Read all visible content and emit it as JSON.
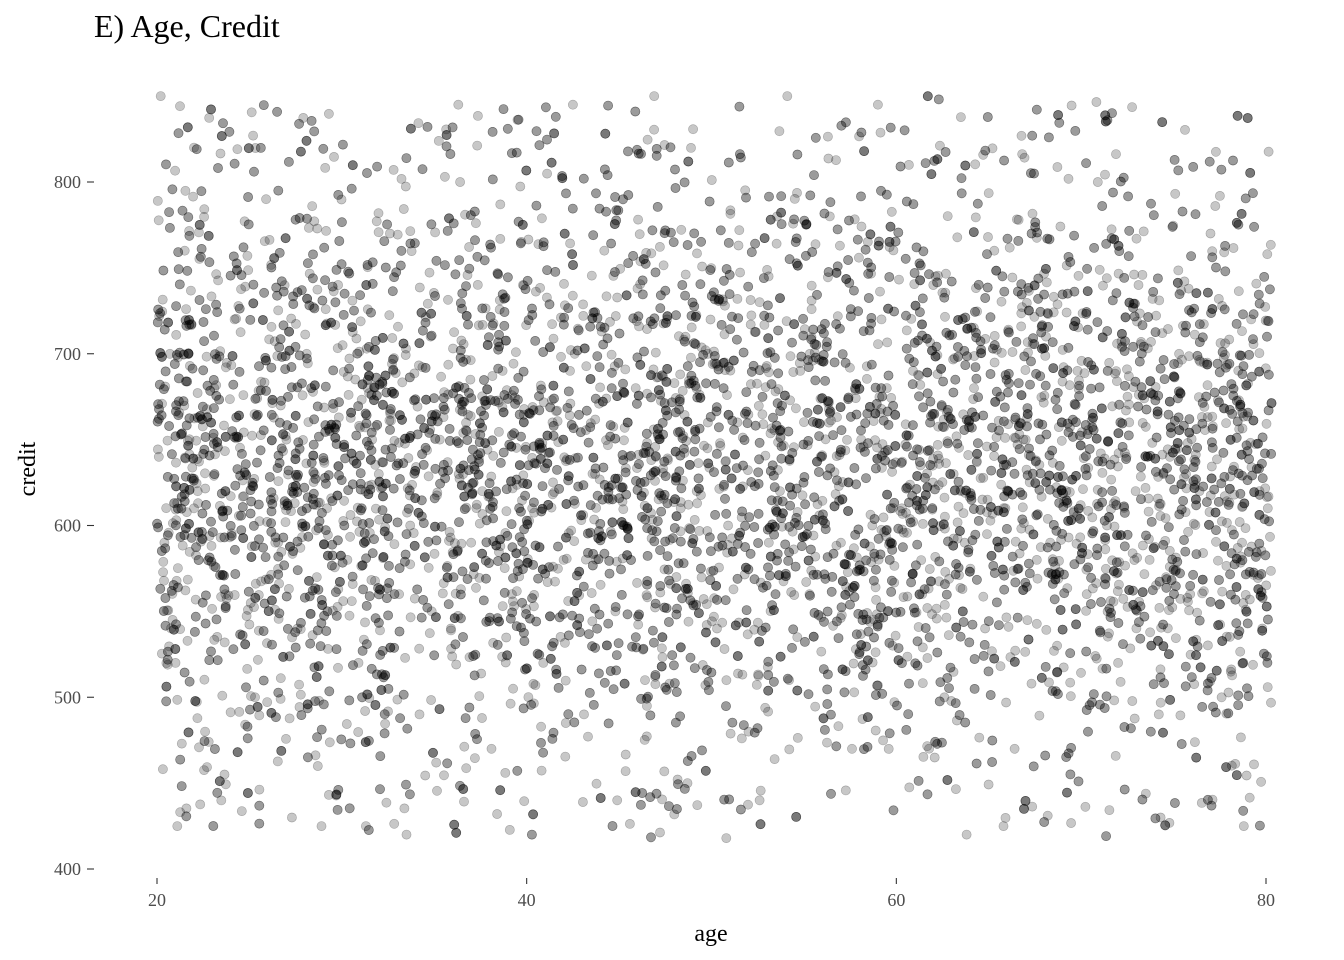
{
  "chart_data": {
    "type": "scatter",
    "title": "E) Age, Credit",
    "xlabel": "age",
    "ylabel": "credit",
    "xlim": [
      19.2,
      80.5
    ],
    "ylim": [
      400,
      855
    ],
    "xticks": [
      20,
      40,
      60,
      80
    ],
    "xtick_labels": [
      "20",
      "40",
      "60",
      "80"
    ],
    "yticks": [
      400,
      500,
      600,
      700,
      800
    ],
    "ytick_labels": [
      "400",
      "500",
      "600",
      "700",
      "800"
    ],
    "grid": false,
    "legend": "none",
    "point_color": "#000000",
    "point_opacity": 0.22,
    "note_points": "Sample of the dense point cloud: ~8000 points uniformly spread over age 20–80, credit concentrated between ~420 and ~850 with a peak density around 550–720.",
    "points": {
      "x": [
        20.1,
        20.4,
        20.7,
        21.0,
        21.5,
        22.0,
        22.6,
        23.1,
        23.7,
        24.2,
        24.8,
        25.3,
        25.9,
        26.4,
        27.0,
        27.6,
        28.1,
        28.7,
        29.2,
        29.8,
        30.3,
        30.9,
        31.4,
        32.0,
        32.6,
        33.1,
        33.7,
        34.2,
        34.8,
        35.3,
        35.9,
        36.4,
        37.0,
        37.6,
        38.1,
        38.7,
        39.2,
        39.8,
        40.3,
        40.9,
        41.4,
        42.0,
        42.6,
        43.1,
        43.7,
        44.2,
        44.8,
        45.3,
        45.9,
        46.4,
        47.0,
        47.6,
        48.1,
        48.7,
        49.2,
        49.8,
        50.3,
        50.9,
        51.4,
        52.0,
        52.6,
        53.1,
        53.7,
        54.2,
        54.8,
        55.3,
        55.9,
        56.4,
        57.0,
        57.6,
        58.1,
        58.7,
        59.2,
        59.8,
        60.3,
        60.9,
        61.4,
        62.0,
        62.6,
        63.1,
        63.7,
        64.2,
        64.8,
        65.3,
        65.9,
        66.4,
        67.0,
        67.6,
        68.1,
        68.7,
        69.2,
        69.8,
        70.3,
        70.9,
        71.4,
        72.0,
        72.6,
        73.1,
        73.7,
        74.2,
        74.8,
        75.3,
        75.9,
        76.4,
        77.0,
        77.6,
        78.1,
        78.7,
        79.2,
        79.8,
        80.1,
        20.2,
        46.9,
        54.1,
        36.3,
        42.5,
        59.0,
        22.0,
        21.1,
        50.8,
        33.5,
        28.9,
        74.3,
        78.8,
        63.8,
        38.4,
        31.3,
        52.6,
        44.9,
        27.3,
        65.8
      ],
      "y": [
        640,
        590,
        700,
        520,
        760,
        610,
        480,
        680,
        560,
        720,
        630,
        500,
        790,
        590,
        650,
        540,
        700,
        460,
        610,
        740,
        580,
        520,
        680,
        630,
        770,
        560,
        600,
        490,
        710,
        650,
        540,
        800,
        590,
        620,
        470,
        690,
        560,
        740,
        610,
        520,
        660,
        580,
        700,
        490,
        630,
        760,
        550,
        600,
        680,
        510,
        640,
        720,
        570,
        450,
        620,
        700,
        540,
        600,
        660,
        480,
        730,
        590,
        620,
        510,
        690,
        560,
        640,
        780,
        590,
        470,
        650,
        600,
        720,
        530,
        610,
        690,
        560,
        740,
        500,
        630,
        590,
        680,
        540,
        760,
        610,
        470,
        650,
        580,
        710,
        530,
        620,
        690,
        560,
        800,
        600,
        520,
        660,
        740,
        580,
        490,
        640,
        700,
        560,
        620,
        770,
        500,
        650,
        590,
        720,
        540,
        610,
        850,
        850,
        850,
        845,
        845,
        845,
        820,
        425,
        418,
        420,
        425,
        430,
        425,
        420,
        432,
        425,
        440,
        440,
        430,
        425
      ]
    }
  }
}
